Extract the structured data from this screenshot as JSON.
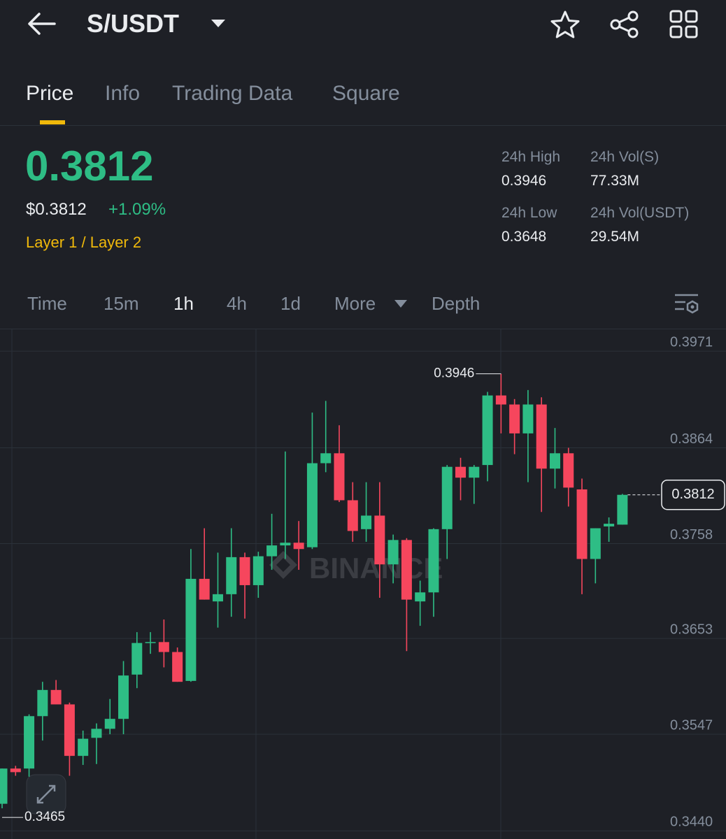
{
  "header": {
    "pair": "S/USDT"
  },
  "tabs": [
    "Price",
    "Info",
    "Trading Data",
    "Square"
  ],
  "ticker": {
    "price": "0.3812",
    "usd_price": "$0.3812",
    "change": "+1.09%",
    "tag": "Layer 1 / Layer 2"
  },
  "stats": [
    {
      "label": "24h High",
      "value": "0.3946"
    },
    {
      "label": "24h Vol(S)",
      "value": "77.33M"
    },
    {
      "label": "24h Low",
      "value": "0.3648"
    },
    {
      "label": "24h Vol(USDT)",
      "value": "29.54M"
    }
  ],
  "intervals": [
    "Time",
    "15m",
    "1h",
    "4h",
    "1d",
    "More",
    "Depth"
  ],
  "chart_data": {
    "type": "candlestick",
    "watermark": "BINANCE",
    "up_color": "#2ebd85",
    "down_color": "#f6465d",
    "ylim": [
      0.3431,
      0.3996
    ],
    "yticks": [
      0.3971,
      0.3864,
      0.3758,
      0.3653,
      0.3547,
      {
        "value": 0.344,
        "label": "0.3440"
      }
    ],
    "grid": true,
    "max_marker": 0.3946,
    "min_marker": 0.3465,
    "last_price": 0.3812,
    "open": [
      0.347,
      0.3509,
      0.3509,
      0.3567,
      0.3596,
      0.358,
      0.3523,
      0.3543,
      0.3553,
      0.3564,
      0.3613,
      0.3648,
      0.3649,
      0.3638,
      0.3606,
      0.3719,
      0.3694,
      0.3702,
      0.3743,
      0.3712,
      0.3744,
      0.3756,
      0.3759,
      0.3754,
      0.3847,
      0.3858,
      0.3806,
      0.3774,
      0.3789,
      0.3735,
      0.3762,
      0.3694,
      0.3704,
      0.3774,
      0.3843,
      0.3831,
      0.3845,
      0.3922,
      0.3912,
      0.388,
      0.3912,
      0.3841,
      0.3858,
      0.3818,
      0.3741,
      0.3777,
      0.3779
    ],
    "high": [
      0.3509,
      0.3512,
      0.3569,
      0.3605,
      0.3607,
      0.3582,
      0.3551,
      0.3559,
      0.3586,
      0.3628,
      0.366,
      0.366,
      0.3674,
      0.3643,
      0.3752,
      0.3775,
      0.3748,
      0.3775,
      0.3748,
      0.3749,
      0.3791,
      0.386,
      0.3783,
      0.3903,
      0.3916,
      0.3889,
      0.3826,
      0.3826,
      0.3826,
      0.3768,
      0.3764,
      0.3717,
      0.3775,
      0.3845,
      0.3853,
      0.3845,
      0.3926,
      0.3946,
      0.3918,
      0.3928,
      0.392,
      0.3886,
      0.3864,
      0.383,
      0.3775,
      0.3787,
      0.3813
    ],
    "low": [
      0.3465,
      0.3501,
      0.35,
      0.354,
      0.358,
      0.3501,
      0.3513,
      0.3514,
      0.3547,
      0.3547,
      0.3598,
      0.3636,
      0.3621,
      0.3605,
      0.3605,
      0.3696,
      0.3665,
      0.3677,
      0.3675,
      0.3698,
      0.3729,
      0.3741,
      0.3729,
      0.3752,
      0.3837,
      0.3804,
      0.376,
      0.376,
      0.3698,
      0.3714,
      0.3639,
      0.3667,
      0.3677,
      0.3741,
      0.3806,
      0.3802,
      0.3827,
      0.388,
      0.3857,
      0.3826,
      0.3793,
      0.3819,
      0.3799,
      0.3702,
      0.3714,
      0.376,
      0.3779
    ],
    "close": [
      0.3509,
      0.3505,
      0.3567,
      0.3596,
      0.358,
      0.3523,
      0.3542,
      0.3553,
      0.3564,
      0.3612,
      0.3648,
      0.3649,
      0.3638,
      0.3605,
      0.3719,
      0.3696,
      0.3702,
      0.3743,
      0.3712,
      0.3744,
      0.3756,
      0.3759,
      0.3752,
      0.3847,
      0.3858,
      0.3806,
      0.3772,
      0.3789,
      0.3735,
      0.3762,
      0.3696,
      0.3704,
      0.3774,
      0.3843,
      0.3831,
      0.3843,
      0.3922,
      0.3912,
      0.388,
      0.3912,
      0.3841,
      0.3858,
      0.382,
      0.3741,
      0.3775,
      0.378,
      0.3812
    ]
  }
}
